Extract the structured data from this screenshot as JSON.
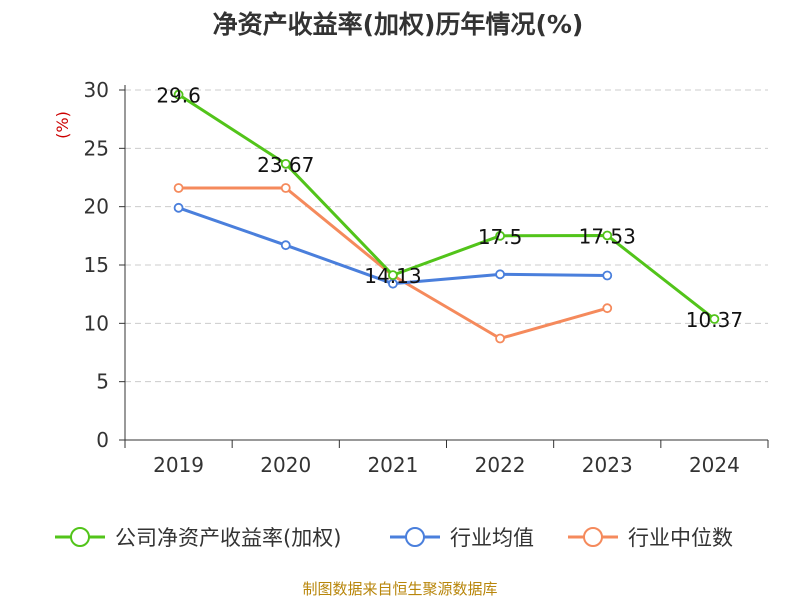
{
  "chart_data": {
    "type": "line",
    "title": "净资产收益率(加权)历年情况(%)",
    "ylabel": "(%)",
    "xlabel": "",
    "categories": [
      "2019",
      "2020",
      "2021",
      "2022",
      "2023",
      "2024"
    ],
    "ylim": [
      0,
      30
    ],
    "yticks": [
      0,
      5,
      10,
      15,
      20,
      25,
      30
    ],
    "grid": true,
    "legend_position": "bottom",
    "series": [
      {
        "name": "公司净资产收益率(加权)",
        "color": "#52c41a",
        "values": [
          29.6,
          23.67,
          14.13,
          17.5,
          17.53,
          10.37
        ],
        "data_labels": [
          "29.6",
          "23.67",
          "14.13",
          "17.5",
          "17.53",
          "10.37"
        ]
      },
      {
        "name": "行业均值",
        "color": "#4a7fdc",
        "values": [
          19.9,
          16.7,
          13.4,
          14.2,
          14.1,
          null
        ]
      },
      {
        "name": "行业中位数",
        "color": "#f58a5c",
        "values": [
          21.6,
          21.6,
          14.1,
          8.7,
          11.3,
          null
        ]
      }
    ],
    "source": "制图数据来自恒生聚源数据库",
    "colors": {
      "axis": "#333333",
      "grid": "#cccccc",
      "ylabel": "#cc0000",
      "source": "#b8860b"
    }
  }
}
